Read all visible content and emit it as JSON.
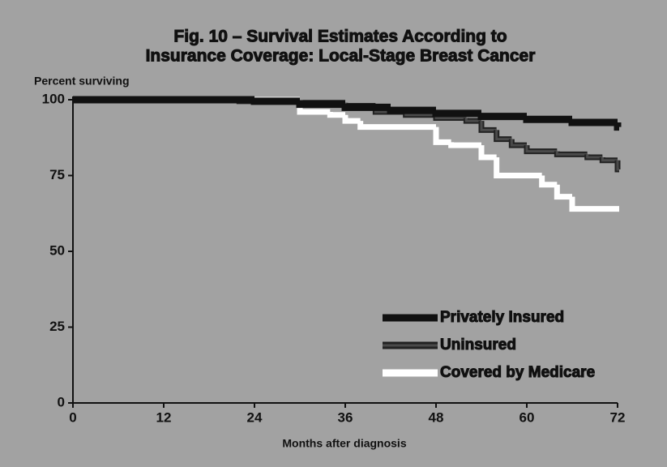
{
  "chart_data": {
    "type": "step",
    "title": [
      "Fig. 10 – Survival Estimates According to",
      "Insurance Coverage: Local-Stage Breast Cancer"
    ],
    "y_label": "Percent surviving",
    "x_label": "Months after diagnosis",
    "xlim": [
      0,
      72
    ],
    "xticks": [
      0,
      12,
      24,
      36,
      48,
      60,
      72
    ],
    "ylim": [
      0,
      100
    ],
    "yticks": [
      0,
      25,
      50,
      75,
      100
    ],
    "legend": "lower right",
    "series": [
      {
        "name": "Privately Insured",
        "color": "#111111",
        "x": [
          0,
          24,
          30,
          36,
          42,
          48,
          54,
          60,
          66,
          72
        ],
        "values": [
          100,
          99.5,
          98.5,
          97.5,
          96.5,
          95.5,
          94.5,
          93.5,
          92.5,
          91
        ]
      },
      {
        "name": "Uninsured",
        "color": "#4a4a4a",
        "x": [
          0,
          22,
          30,
          36,
          40,
          44,
          48,
          52,
          54,
          56,
          58,
          60,
          64,
          68,
          70,
          72
        ],
        "values": [
          100,
          99.5,
          99,
          98,
          96,
          95,
          94,
          93,
          90,
          87,
          85,
          83,
          82,
          81,
          80,
          77
        ]
      },
      {
        "name": "Covered by Medicare",
        "color": "#ffffff",
        "x": [
          0,
          30,
          34,
          36,
          38,
          48,
          50,
          54,
          56,
          62,
          64,
          66,
          72
        ],
        "values": [
          100,
          96,
          95,
          93,
          91,
          86,
          85,
          81,
          75,
          72,
          68,
          64,
          64
        ]
      }
    ]
  }
}
